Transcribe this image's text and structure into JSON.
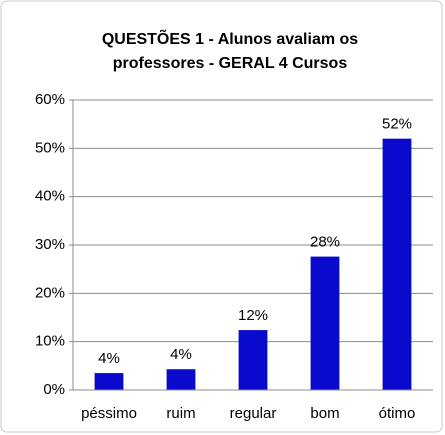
{
  "chart_data": {
    "type": "bar",
    "title": "QUESTÕES 1 - Alunos avaliam os professores - GERAL 4 Cursos",
    "categories": [
      "péssimo",
      "ruim",
      "regular",
      "bom",
      "ótimo"
    ],
    "values": [
      3.5,
      4.3,
      12.4,
      27.6,
      52
    ],
    "value_labels": [
      "4%",
      "4%",
      "12%",
      "28%",
      "52%"
    ],
    "color": "#0a0acd",
    "ylim": [
      0,
      60
    ],
    "yticks": [
      {
        "value": 0,
        "label": "0%"
      },
      {
        "value": 10,
        "label": "10%"
      },
      {
        "value": 20,
        "label": "20%"
      },
      {
        "value": 30,
        "label": "30%"
      },
      {
        "value": 40,
        "label": "40%"
      },
      {
        "value": 50,
        "label": "50%"
      },
      {
        "value": 60,
        "label": "60%"
      }
    ],
    "grid": true
  }
}
